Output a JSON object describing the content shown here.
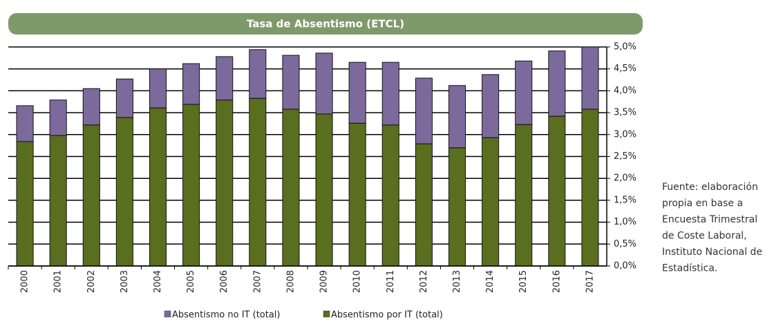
{
  "chart_data": {
    "type": "stacked-bar",
    "title": "Tasa de Absentismo (ETCL)",
    "categories": [
      "2000",
      "2001",
      "2002",
      "2003",
      "2004",
      "2005",
      "2006",
      "2007",
      "2008",
      "2009",
      "2010",
      "2011",
      "2012",
      "2013",
      "2014",
      "2015",
      "2016",
      "2017"
    ],
    "series": [
      {
        "name": "Absentismo no IT (total)",
        "color": "#7d6a9c",
        "values": [
          0.82,
          0.81,
          0.83,
          0.88,
          0.89,
          0.93,
          0.99,
          1.11,
          1.23,
          1.39,
          1.39,
          1.43,
          1.5,
          1.42,
          1.44,
          1.45,
          1.49,
          1.42
        ]
      },
      {
        "name": "Absentismo por IT (total)",
        "color": "#5a6e1f",
        "values": [
          2.84,
          2.98,
          3.22,
          3.39,
          3.61,
          3.69,
          3.79,
          3.83,
          3.58,
          3.47,
          3.26,
          3.22,
          2.79,
          2.7,
          2.93,
          3.23,
          3.42,
          3.58
        ]
      }
    ],
    "ylim": [
      0,
      5
    ],
    "yticks": [
      {
        "value": 0,
        "label": "0,0%"
      },
      {
        "value": 0.5,
        "label": "0,5%"
      },
      {
        "value": 1,
        "label": "1,0%"
      },
      {
        "value": 1.5,
        "label": "1,5%"
      },
      {
        "value": 2,
        "label": "2,0%"
      },
      {
        "value": 2.5,
        "label": "2,5%"
      },
      {
        "value": 3,
        "label": "3,0%"
      },
      {
        "value": 3.5,
        "label": "3,5%"
      },
      {
        "value": 4,
        "label": "4,0%"
      },
      {
        "value": 4.5,
        "label": "4,5%"
      },
      {
        "value": 5,
        "label": "5,0%"
      }
    ],
    "grid": true,
    "note": [
      "Fuente: elaboración",
      "propia en base a",
      "Encuesta Trimestral",
      "de Coste Laboral,",
      "Instituto Nacional de",
      "Estadística."
    ]
  }
}
